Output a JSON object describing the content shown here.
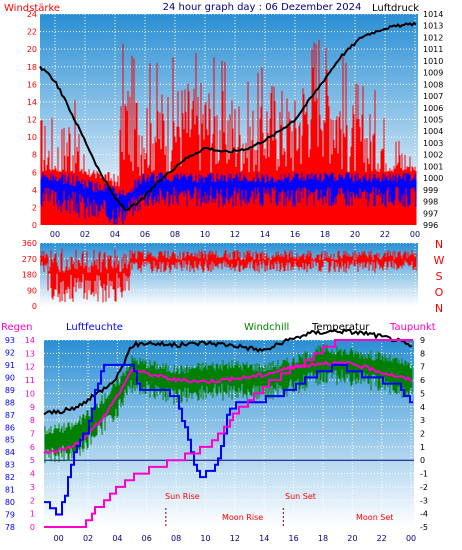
{
  "colors": {
    "wind": "#ff0000",
    "gust": "#0000ff",
    "pressure": "#000000",
    "direction": "#ff0000",
    "rain": "#ff00cc",
    "humidity": "#0000ff",
    "windchill": "#008000",
    "temperature": "#000000",
    "dewpoint": "#ff00cc",
    "grid": "#ffffff",
    "title": "#000080",
    "annotation": "#ff0000"
  },
  "header": {
    "left_label": "Windstärke",
    "title": "24 hour graph day : 06 Dezember 2024",
    "right_label": "Luftdruck"
  },
  "direction_labels": [
    "N",
    "W",
    "S",
    "O",
    "N"
  ],
  "bottom_legend": {
    "rain": "Regen",
    "humidity": "Luftfeuchte",
    "windchill": "Windchill",
    "temperature": "Temperatur",
    "dewpoint": "Taupunkt"
  },
  "annotations": {
    "sun_rise": "Sun Rise",
    "sun_set": "Sun Set",
    "moon_rise": "Moon Rise",
    "moon_set": "Moon Set"
  },
  "chart_data": [
    {
      "type": "line",
      "name": "wind-pressure",
      "title": "24 hour graph day : 06 Dezember 2024",
      "x_ticks": [
        "00",
        "02",
        "04",
        "06",
        "08",
        "10",
        "12",
        "14",
        "16",
        "18",
        "20",
        "22",
        "00"
      ],
      "x_ticks_hours": [
        1,
        3,
        5,
        7,
        9,
        11,
        13,
        15,
        17,
        19,
        21,
        23,
        25
      ],
      "xlim_hours": [
        0,
        25.2
      ],
      "y_left_label": "Windstärke",
      "y_left_ticks": [
        0,
        2,
        4,
        6,
        8,
        10,
        12,
        14,
        16,
        18,
        20,
        22,
        24
      ],
      "y_left_lim": [
        0,
        24
      ],
      "y_right_label": "Luftdruck",
      "y_right_ticks": [
        996,
        997,
        998,
        999,
        1000,
        1001,
        1002,
        1003,
        1004,
        1005,
        1006,
        1007,
        1008,
        1009,
        1010,
        1011,
        1012,
        1013,
        1014
      ],
      "y_right_lim": [
        996,
        1014
      ],
      "wind_peaks": [
        {
          "hours": 0.0,
          "value": 13
        },
        {
          "hours": 1.0,
          "value": 10
        },
        {
          "hours": 2.0,
          "value": 14
        },
        {
          "hours": 3.0,
          "value": 9
        },
        {
          "hours": 4.0,
          "value": 5
        },
        {
          "hours": 5.0,
          "value": 3
        },
        {
          "hours": 5.5,
          "value": 18
        },
        {
          "hours": 6.5,
          "value": 16
        },
        {
          "hours": 8.0,
          "value": 16
        },
        {
          "hours": 9.5,
          "value": 17
        },
        {
          "hours": 11.0,
          "value": 17
        },
        {
          "hours": 12.5,
          "value": 16
        },
        {
          "hours": 14.0,
          "value": 14
        },
        {
          "hours": 15.5,
          "value": 17
        },
        {
          "hours": 17.0,
          "value": 15
        },
        {
          "hours": 18.5,
          "value": 24
        },
        {
          "hours": 19.5,
          "value": 19
        },
        {
          "hours": 21.0,
          "value": 14
        },
        {
          "hours": 23.0,
          "value": 13
        },
        {
          "hours": 25.0,
          "value": 8
        }
      ],
      "gust_range": [
        {
          "hours": 0.0,
          "low": 2,
          "high": 6
        },
        {
          "hours": 2.0,
          "low": 1,
          "high": 6
        },
        {
          "hours": 4.0,
          "low": 0,
          "high": 5
        },
        {
          "hours": 5.5,
          "low": 0,
          "high": 4
        },
        {
          "hours": 7.0,
          "low": 2,
          "high": 6
        },
        {
          "hours": 10.0,
          "low": 2,
          "high": 6
        },
        {
          "hours": 14.0,
          "low": 2,
          "high": 6
        },
        {
          "hours": 18.0,
          "low": 2,
          "high": 6
        },
        {
          "hours": 22.0,
          "low": 2,
          "high": 6
        },
        {
          "hours": 25.0,
          "low": 2,
          "high": 6
        }
      ],
      "pressure": [
        {
          "hours": 0.0,
          "value": 1009.5
        },
        {
          "hours": 1.0,
          "value": 1008.3
        },
        {
          "hours": 2.0,
          "value": 1005.8
        },
        {
          "hours": 3.0,
          "value": 1003.2
        },
        {
          "hours": 4.0,
          "value": 1000.5
        },
        {
          "hours": 5.0,
          "value": 998.3
        },
        {
          "hours": 5.7,
          "value": 997.3
        },
        {
          "hours": 6.5,
          "value": 997.8
        },
        {
          "hours": 8.0,
          "value": 999.8
        },
        {
          "hours": 9.5,
          "value": 1001.5
        },
        {
          "hours": 11.0,
          "value": 1002.6
        },
        {
          "hours": 12.5,
          "value": 1002.2
        },
        {
          "hours": 14.0,
          "value": 1002.6
        },
        {
          "hours": 15.5,
          "value": 1003.6
        },
        {
          "hours": 17.0,
          "value": 1005.0
        },
        {
          "hours": 18.5,
          "value": 1007.6
        },
        {
          "hours": 20.0,
          "value": 1010.3
        },
        {
          "hours": 21.5,
          "value": 1012.1
        },
        {
          "hours": 23.0,
          "value": 1012.8
        },
        {
          "hours": 25.0,
          "value": 1013.2
        }
      ]
    },
    {
      "type": "bar",
      "name": "wind-direction",
      "y_ticks": [
        0,
        90,
        180,
        270,
        360
      ],
      "y_lim": [
        0,
        360
      ],
      "typical_range_deg": [
        190,
        320
      ],
      "range_early_deg": [
        20,
        330
      ],
      "range_early_hours": [
        0.5,
        6.0
      ]
    },
    {
      "type": "line",
      "name": "temperature-humidity",
      "x_ticks": [
        "00",
        "02",
        "04",
        "06",
        "08",
        "10",
        "12",
        "14",
        "16",
        "18",
        "20",
        "22",
        "00"
      ],
      "x_ticks_hours": [
        1,
        3,
        5,
        7,
        9,
        11,
        13,
        15,
        17,
        19,
        21,
        23,
        25
      ],
      "xlim_hours": [
        0,
        25.2
      ],
      "y_left_ticks": [
        78,
        79,
        80,
        81,
        82,
        83,
        84,
        85,
        86,
        87,
        88,
        89,
        90,
        91,
        92,
        93
      ],
      "y_left_lim": [
        78,
        93
      ],
      "y_mid_ticks": [
        0,
        1,
        2,
        3,
        4,
        5,
        6,
        7,
        8,
        9,
        10,
        11,
        12,
        13,
        14
      ],
      "y_mid_lim": [
        0,
        14
      ],
      "y_right_ticks": [
        -5,
        -4,
        -3,
        -2,
        -1,
        0,
        1,
        2,
        3,
        4,
        5,
        6,
        7,
        8,
        9
      ],
      "y_right_lim": [
        -5,
        9
      ],
      "zero_line_celsius": 0,
      "sun_rise_hours": 8.3,
      "sun_set_hours": 16.3,
      "humidity": [
        {
          "hours": 0.0,
          "value": 80
        },
        {
          "hours": 1.0,
          "value": 79
        },
        {
          "hours": 1.5,
          "value": 81
        },
        {
          "hours": 2.0,
          "value": 84
        },
        {
          "hours": 3.0,
          "value": 86
        },
        {
          "hours": 3.5,
          "value": 89
        },
        {
          "hours": 4.0,
          "value": 91
        },
        {
          "hours": 5.0,
          "value": 91
        },
        {
          "hours": 6.0,
          "value": 91
        },
        {
          "hours": 6.5,
          "value": 89
        },
        {
          "hours": 8.0,
          "value": 89
        },
        {
          "hours": 9.0,
          "value": 88.5
        },
        {
          "hours": 10.0,
          "value": 84
        },
        {
          "hours": 10.5,
          "value": 82
        },
        {
          "hours": 11.5,
          "value": 82.5
        },
        {
          "hours": 12.0,
          "value": 84
        },
        {
          "hours": 12.5,
          "value": 87
        },
        {
          "hours": 13.0,
          "value": 88
        },
        {
          "hours": 14.0,
          "value": 88
        },
        {
          "hours": 16.0,
          "value": 88.5
        },
        {
          "hours": 18.0,
          "value": 90
        },
        {
          "hours": 20.0,
          "value": 91
        },
        {
          "hours": 22.0,
          "value": 90
        },
        {
          "hours": 24.0,
          "value": 89.5
        },
        {
          "hours": 25.0,
          "value": 88
        }
      ],
      "temperature": [
        {
          "hours": 0.0,
          "value": 3.5
        },
        {
          "hours": 2.0,
          "value": 3.8
        },
        {
          "hours": 3.0,
          "value": 4.5
        },
        {
          "hours": 4.0,
          "value": 5.3
        },
        {
          "hours": 5.0,
          "value": 6.3
        },
        {
          "hours": 6.0,
          "value": 8.6
        },
        {
          "hours": 7.0,
          "value": 8.8
        },
        {
          "hours": 9.0,
          "value": 8.6
        },
        {
          "hours": 11.0,
          "value": 8.8
        },
        {
          "hours": 13.0,
          "value": 8.6
        },
        {
          "hours": 15.0,
          "value": 8.2
        },
        {
          "hours": 16.0,
          "value": 8.7
        },
        {
          "hours": 18.0,
          "value": 9.5
        },
        {
          "hours": 20.0,
          "value": 9.7
        },
        {
          "hours": 22.0,
          "value": 9.5
        },
        {
          "hours": 24.0,
          "value": 9.0
        },
        {
          "hours": 25.0,
          "value": 8.5
        }
      ],
      "windchill": [
        {
          "hours": 0.0,
          "value": 1.5
        },
        {
          "hours": 2.0,
          "value": 1.8
        },
        {
          "hours": 3.0,
          "value": 2.7
        },
        {
          "hours": 4.0,
          "value": 3.8
        },
        {
          "hours": 5.0,
          "value": 5.0
        },
        {
          "hours": 6.0,
          "value": 6.8
        },
        {
          "hours": 7.0,
          "value": 6.5
        },
        {
          "hours": 9.0,
          "value": 6.0
        },
        {
          "hours": 11.0,
          "value": 6.3
        },
        {
          "hours": 13.0,
          "value": 6.4
        },
        {
          "hours": 15.0,
          "value": 6.2
        },
        {
          "hours": 17.0,
          "value": 6.7
        },
        {
          "hours": 19.0,
          "value": 7.6
        },
        {
          "hours": 21.0,
          "value": 7.3
        },
        {
          "hours": 23.0,
          "value": 7.0
        },
        {
          "hours": 25.0,
          "value": 6.3
        }
      ],
      "dewpoint": [
        {
          "hours": 0.0,
          "value": 0.5
        },
        {
          "hours": 2.0,
          "value": 1.0
        },
        {
          "hours": 3.0,
          "value": 2.0
        },
        {
          "hours": 4.0,
          "value": 3.2
        },
        {
          "hours": 5.0,
          "value": 4.8
        },
        {
          "hours": 6.0,
          "value": 6.8
        },
        {
          "hours": 7.0,
          "value": 6.5
        },
        {
          "hours": 9.0,
          "value": 6.0
        },
        {
          "hours": 11.0,
          "value": 5.9
        },
        {
          "hours": 13.0,
          "value": 6.1
        },
        {
          "hours": 15.0,
          "value": 6.4
        },
        {
          "hours": 17.0,
          "value": 7.0
        },
        {
          "hours": 19.0,
          "value": 7.3
        },
        {
          "hours": 21.0,
          "value": 7.2
        },
        {
          "hours": 23.0,
          "value": 6.6
        },
        {
          "hours": 25.0,
          "value": 6.0
        }
      ],
      "rain": [
        {
          "hours": 0.0,
          "value": 0.0
        },
        {
          "hours": 2.5,
          "value": 0.0
        },
        {
          "hours": 3.5,
          "value": 1.3
        },
        {
          "hours": 5.0,
          "value": 3.0
        },
        {
          "hours": 6.5,
          "value": 4.0
        },
        {
          "hours": 9.0,
          "value": 5.0
        },
        {
          "hours": 11.0,
          "value": 6.0
        },
        {
          "hours": 12.0,
          "value": 7.0
        },
        {
          "hours": 13.0,
          "value": 8.5
        },
        {
          "hours": 14.0,
          "value": 9.5
        },
        {
          "hours": 15.0,
          "value": 10.5
        },
        {
          "hours": 16.5,
          "value": 11.7
        },
        {
          "hours": 17.5,
          "value": 12.0
        },
        {
          "hours": 18.5,
          "value": 13.0
        },
        {
          "hours": 20.0,
          "value": 14.0
        },
        {
          "hours": 25.0,
          "value": 14.0
        }
      ]
    }
  ]
}
